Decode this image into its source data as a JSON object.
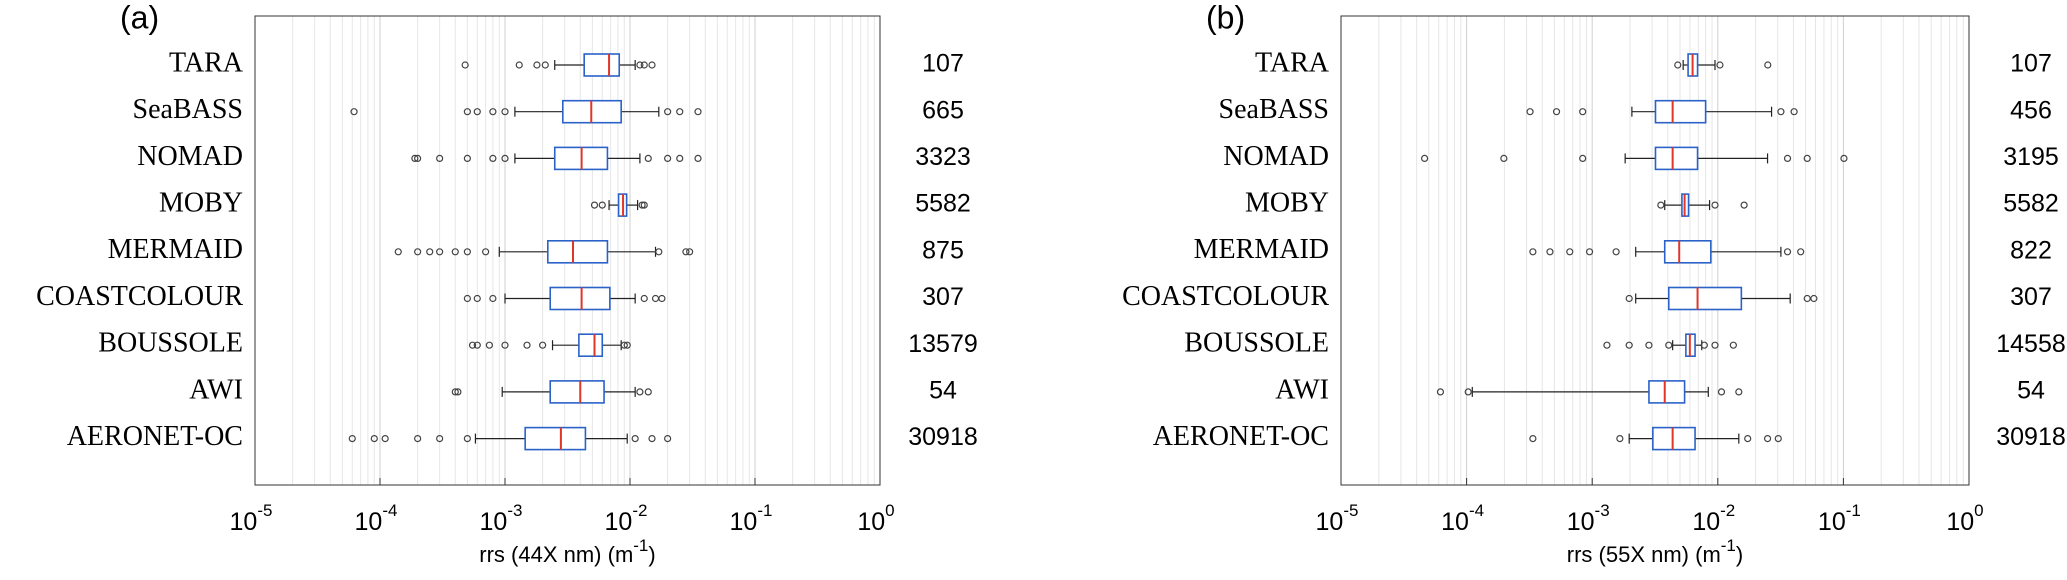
{
  "chart_data": [
    {
      "type": "box",
      "panel_label": "(a)",
      "xlabel": "rrs (44X nm) (m",
      "xlabel_exponent": "-1",
      "xlabel_suffix": ")",
      "log_x": true,
      "grid": true,
      "box_color": "#2a62c9",
      "median_color": "#e0362a",
      "xlim": [
        1e-05,
        1
      ],
      "xticks": [
        {
          "value": 1e-05,
          "label": "10",
          "exponent": "-5"
        },
        {
          "value": 0.0001,
          "label": "10",
          "exponent": "-4"
        },
        {
          "value": 0.001,
          "label": "10",
          "exponent": "-3"
        },
        {
          "value": 0.01,
          "label": "10",
          "exponent": "-2"
        },
        {
          "value": 0.1,
          "label": "10",
          "exponent": "-1"
        },
        {
          "value": 1,
          "label": "10",
          "exponent": "0"
        }
      ],
      "categories": [
        "TARA",
        "SeaBASS",
        "NOMAD",
        "MOBY",
        "MERMAID",
        "COASTCOLOUR",
        "BOUSSOLE",
        "AWI",
        "AERONET-OC"
      ],
      "counts": [
        107,
        665,
        3323,
        5582,
        875,
        307,
        13579,
        54,
        30918
      ],
      "boxes": [
        {
          "whislo": 0.0025,
          "q1": 0.0043,
          "med": 0.0068,
          "q3": 0.0082,
          "whishi": 0.011,
          "outliers": [
            0.00048,
            0.0013,
            0.0018,
            0.0021,
            0.012,
            0.013,
            0.015
          ]
        },
        {
          "whislo": 0.0012,
          "q1": 0.0029,
          "med": 0.0049,
          "q3": 0.0085,
          "whishi": 0.017,
          "outliers": [
            6.2e-05,
            0.0005,
            0.0006,
            0.0008,
            0.001,
            0.02,
            0.025,
            0.035
          ]
        },
        {
          "whislo": 0.0012,
          "q1": 0.0025,
          "med": 0.0041,
          "q3": 0.0066,
          "whishi": 0.012,
          "outliers": [
            0.00019,
            0.0002,
            0.0003,
            0.0005,
            0.0008,
            0.001,
            0.014,
            0.02,
            0.025,
            0.035
          ]
        },
        {
          "whislo": 0.0068,
          "q1": 0.0081,
          "med": 0.0088,
          "q3": 0.0094,
          "whishi": 0.0115,
          "outliers": [
            0.0052,
            0.006,
            0.0125,
            0.013
          ]
        },
        {
          "whislo": 0.0009,
          "q1": 0.0022,
          "med": 0.0035,
          "q3": 0.0066,
          "whishi": 0.016,
          "outliers": [
            0.00014,
            0.0002,
            0.00025,
            0.0003,
            0.0004,
            0.0005,
            0.0007,
            0.017,
            0.028,
            0.03
          ]
        },
        {
          "whislo": 0.001,
          "q1": 0.0023,
          "med": 0.0041,
          "q3": 0.0069,
          "whishi": 0.011,
          "outliers": [
            0.0005,
            0.0006,
            0.0008,
            0.013,
            0.016,
            0.018
          ]
        },
        {
          "whislo": 0.0024,
          "q1": 0.0039,
          "med": 0.0052,
          "q3": 0.006,
          "whishi": 0.0085,
          "outliers": [
            0.00055,
            0.0006,
            0.00075,
            0.001,
            0.0015,
            0.002,
            0.009,
            0.0095
          ]
        },
        {
          "whislo": 0.00095,
          "q1": 0.0023,
          "med": 0.004,
          "q3": 0.0062,
          "whishi": 0.011,
          "outliers": [
            0.0004,
            0.00042,
            0.012,
            0.014
          ]
        },
        {
          "whislo": 0.00058,
          "q1": 0.00145,
          "med": 0.0028,
          "q3": 0.0044,
          "whishi": 0.0095,
          "outliers": [
            6e-05,
            9e-05,
            0.00011,
            0.0002,
            0.0003,
            0.0005,
            0.011,
            0.015,
            0.02
          ]
        }
      ]
    },
    {
      "type": "box",
      "panel_label": "(b)",
      "xlabel": "rrs (55X nm) (m",
      "xlabel_exponent": "-1",
      "xlabel_suffix": ")",
      "log_x": true,
      "grid": true,
      "box_color": "#2a62c9",
      "median_color": "#e0362a",
      "xlim": [
        1e-05,
        1
      ],
      "xticks": [
        {
          "value": 1e-05,
          "label": "10",
          "exponent": "-5"
        },
        {
          "value": 0.0001,
          "label": "10",
          "exponent": "-4"
        },
        {
          "value": 0.001,
          "label": "10",
          "exponent": "-3"
        },
        {
          "value": 0.01,
          "label": "10",
          "exponent": "-2"
        },
        {
          "value": 0.1,
          "label": "10",
          "exponent": "-1"
        },
        {
          "value": 1,
          "label": "10",
          "exponent": "0"
        }
      ],
      "categories": [
        "TARA",
        "SeaBASS",
        "NOMAD",
        "MOBY",
        "MERMAID",
        "COASTCOLOUR",
        "BOUSSOLE",
        "AWI",
        "AERONET-OC"
      ],
      "counts": [
        107,
        456,
        3195,
        5582,
        822,
        307,
        14558,
        54,
        30918
      ],
      "boxes": [
        {
          "whislo": 0.0053,
          "q1": 0.0058,
          "med": 0.0063,
          "q3": 0.0069,
          "whishi": 0.0095,
          "outliers": [
            0.0048,
            0.0104,
            0.025
          ]
        },
        {
          "whislo": 0.00207,
          "q1": 0.00319,
          "med": 0.00437,
          "q3": 0.008,
          "whishi": 0.0268,
          "outliers": [
            0.00032,
            0.00052,
            0.00084,
            0.0318,
            0.0405
          ]
        },
        {
          "whislo": 0.00183,
          "q1": 0.00319,
          "med": 0.00437,
          "q3": 0.0069,
          "whishi": 0.0249,
          "outliers": [
            4.63e-05,
            0.000198,
            0.00084,
            0.0359,
            0.0515,
            0.101
          ]
        },
        {
          "whislo": 0.00378,
          "q1": 0.00518,
          "med": 0.00544,
          "q3": 0.00585,
          "whishi": 0.0086,
          "outliers": [
            0.00352,
            0.0095,
            0.0162
          ]
        },
        {
          "whislo": 0.00222,
          "q1": 0.00378,
          "med": 0.00493,
          "q3": 0.0088,
          "whishi": 0.0318,
          "outliers": [
            0.000337,
            0.000461,
            0.000663,
            0.000953,
            0.00155,
            0.0359,
            0.0457
          ]
        },
        {
          "whislo": 0.00222,
          "q1": 0.00407,
          "med": 0.0069,
          "q3": 0.0154,
          "whishi": 0.0377,
          "outliers": [
            0.00197,
            0.0515,
            0.0582
          ]
        },
        {
          "whislo": 0.00437,
          "q1": 0.00557,
          "med": 0.00599,
          "q3": 0.00659,
          "whishi": 0.00745,
          "outliers": [
            0.00131,
            0.00197,
            0.00283,
            0.00407,
            0.00781,
            0.0095,
            0.0133
          ]
        },
        {
          "whislo": 0.000111,
          "q1": 0.00283,
          "med": 0.00378,
          "q3": 0.00544,
          "whishi": 0.0084,
          "outliers": [
            6.19e-05,
            0.000103,
            0.0107,
            0.0147
          ]
        },
        {
          "whislo": 0.00197,
          "q1": 0.00304,
          "med": 0.00437,
          "q3": 0.00659,
          "whishi": 0.0147,
          "outliers": [
            0.000337,
            0.00166,
            0.0173,
            0.0249,
            0.0303
          ]
        }
      ]
    }
  ]
}
